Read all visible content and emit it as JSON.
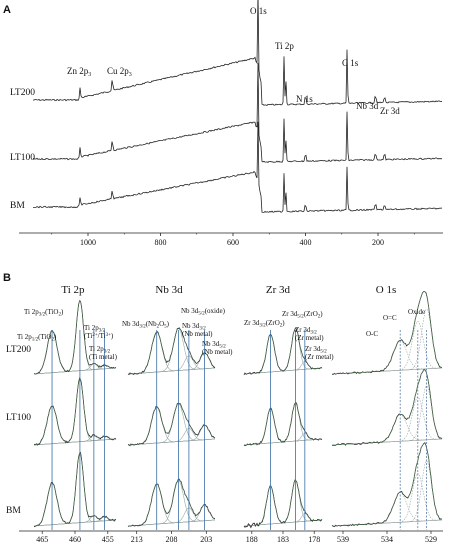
{
  "panels": [
    {
      "letter": "A"
    },
    {
      "letter": "B"
    }
  ],
  "chart_data": [
    {
      "type": "line",
      "panel": "A",
      "xlabel": "",
      "ylabel": "",
      "x_ticks": [
        1000,
        800,
        600,
        400,
        200
      ],
      "x_reversed": true,
      "series": [
        {
          "name": "LT200"
        },
        {
          "name": "LT100"
        },
        {
          "name": "BM"
        }
      ],
      "peak_labels": [
        {
          "html": "Zn 2p<tspan font-size='6' dy='2'>3</tspan>"
        },
        {
          "html": "Cu 2p<tspan font-size='6' dy='2'>3</tspan>"
        },
        {
          "html": "O 1s"
        },
        {
          "html": "Ti 2p"
        },
        {
          "html": "C 1s"
        },
        {
          "html": "N 1s"
        },
        {
          "html": "Nb 3d"
        },
        {
          "html": "Zr 3d"
        }
      ]
    },
    {
      "type": "line",
      "panel": "B",
      "rows": [
        "LT200",
        "LT100",
        "BM"
      ],
      "subplots": [
        {
          "title": "Ti 2p",
          "x_ticks": [
            "465",
            "460",
            "455"
          ],
          "annotations": [
            {
              "html": "Ti 2p<tspan font-size='5' dy='1.5'>3/2</tspan><tspan dy='-1.5'>(TiO</tspan><tspan font-size='5' dy='1.5'>2</tspan><tspan dy='-1.5'>)</tspan>"
            },
            {
              "html": "Ti 2p<tspan font-size='5' dy='1.5'>1/2</tspan><tspan dy='-1.5'>(TiO</tspan><tspan font-size='5' dy='1.5'>2</tspan><tspan dy='-1.5'>)</tspan>"
            },
            {
              "html": "Ti 2p<tspan font-size='5' dy='1.5'>3/2</tspan>"
            },
            {
              "html": "(Ti<tspan font-size='5' dy='-2'>2+</tspan><tspan dy='2'>/Ti</tspan><tspan font-size='5' dy='-2'>3+</tspan><tspan dy='2'>)</tspan>"
            },
            {
              "html": "Ti 2p<tspan font-size='5' dy='1.5'>3/2</tspan>"
            },
            {
              "html": "(Ti metal)"
            }
          ]
        },
        {
          "title": "Nb 3d",
          "x_ticks": [
            "213",
            "208",
            "203"
          ],
          "annotations": [
            {
              "html": "Nb 3d<tspan font-size='5' dy='1.5'>3/2</tspan><tspan dy='-1.5'>(Nb</tspan><tspan font-size='5' dy='1.5'>2</tspan><tspan dy='-1.5'>O</tspan><tspan font-size='5' dy='1.5'>5</tspan><tspan dy='-1.5'>)</tspan>"
            },
            {
              "html": "Nb 3d<tspan font-size='5' dy='1.5'>5/2</tspan><tspan dy='-1.5'>(oxide)</tspan>"
            },
            {
              "html": "Nb 3d<tspan font-size='5' dy='1.5'>3/2</tspan>"
            },
            {
              "html": "(Nb metal)"
            },
            {
              "html": "Nb 3d<tspan font-size='5' dy='1.5'>5/2</tspan>"
            },
            {
              "html": "(Nb metal)"
            }
          ]
        },
        {
          "title": "Zr 3d",
          "x_ticks": [
            "188",
            "183",
            "178"
          ],
          "annotations": [
            {
              "html": "Zr 3d<tspan font-size='5' dy='1.5'>3/2</tspan><tspan dy='-1.5'>(ZrO</tspan><tspan font-size='5' dy='1.5'>2</tspan><tspan dy='-1.5'>)</tspan>"
            },
            {
              "html": "Zr 3d<tspan font-size='5' dy='1.5'>5/2</tspan><tspan dy='-1.5'>(ZrO</tspan><tspan font-size='5' dy='1.5'>2</tspan><tspan dy='-1.5'>)</tspan>"
            },
            {
              "html": "Zr 3d<tspan font-size='5' dy='1.5'>3/2</tspan>"
            },
            {
              "html": "(Zr metal)"
            },
            {
              "html": "Zr 3d<tspan font-size='5' dy='1.5'>5/2</tspan>"
            },
            {
              "html": "(Zr metal)"
            }
          ]
        },
        {
          "title": "O 1s",
          "x_ticks": [
            "539",
            "534",
            "529"
          ],
          "annotations": [
            {
              "html": "O-C"
            },
            {
              "html": "O=C"
            },
            {
              "html": "Oxide"
            }
          ]
        }
      ]
    }
  ]
}
